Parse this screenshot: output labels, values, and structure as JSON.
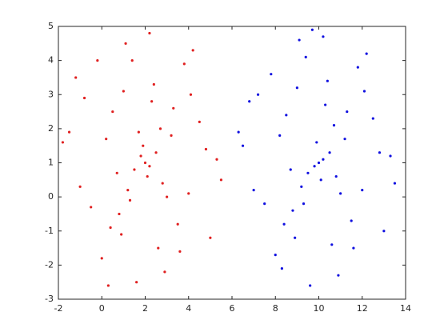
{
  "chart_data": {
    "type": "scatter",
    "xlim": [
      -2,
      14
    ],
    "ylim": [
      -3,
      5
    ],
    "xticks": [
      -2,
      0,
      2,
      4,
      6,
      8,
      10,
      12,
      14
    ],
    "yticks": [
      -3,
      -2,
      -1,
      0,
      1,
      2,
      3,
      4,
      5
    ],
    "grid": false,
    "series": [
      {
        "color": "#e02020",
        "x": [
          2.0,
          1.8,
          2.2,
          1.5,
          2.5,
          1.9,
          2.1,
          1.2,
          2.8,
          0.8,
          3.2,
          0.5,
          3.5,
          1.0,
          2.6,
          1.4,
          2.3,
          0.2,
          4.0,
          -0.5,
          4.5,
          -1.2,
          5.0,
          -1.5,
          5.3,
          0.0,
          3.8,
          1.6,
          2.9,
          -0.8,
          4.2,
          0.9,
          3.0,
          1.1,
          2.4,
          -1.8,
          5.5,
          0.3,
          4.8,
          1.3,
          2.7,
          -0.2,
          3.6,
          0.7,
          1.7,
          2.2,
          -1.0,
          4.1,
          0.4,
          3.3
        ],
        "values": [
          1.0,
          1.2,
          0.9,
          0.8,
          1.3,
          1.5,
          0.6,
          0.2,
          0.4,
          -0.5,
          1.8,
          2.5,
          -0.8,
          3.1,
          -1.5,
          4.0,
          2.8,
          1.7,
          0.1,
          -0.3,
          2.2,
          3.5,
          -1.2,
          1.9,
          1.1,
          -1.8,
          3.9,
          -2.5,
          -2.2,
          2.9,
          4.3,
          -1.1,
          0.0,
          4.5,
          3.3,
          1.6,
          0.5,
          -2.6,
          1.4,
          -0.1,
          2.0,
          4.0,
          -1.6,
          0.7,
          1.9,
          4.8,
          0.3,
          3.0,
          -0.9,
          2.6
        ]
      },
      {
        "color": "#1010e0",
        "x": [
          10.0,
          9.8,
          10.2,
          9.5,
          10.5,
          9.9,
          10.1,
          9.2,
          10.8,
          8.8,
          11.2,
          8.5,
          11.5,
          9.0,
          10.6,
          9.4,
          10.3,
          8.2,
          12.0,
          7.5,
          12.5,
          6.8,
          13.0,
          6.5,
          13.3,
          8.0,
          11.8,
          9.6,
          10.9,
          7.2,
          12.2,
          8.9,
          11.0,
          9.1,
          10.4,
          6.3,
          13.5,
          8.3,
          12.8,
          9.3,
          10.7,
          7.8,
          11.6,
          8.7,
          9.7,
          10.2,
          7.0,
          12.1,
          8.4,
          11.3
        ],
        "values": [
          1.0,
          0.9,
          1.1,
          0.7,
          1.3,
          1.6,
          0.5,
          0.3,
          0.6,
          -0.4,
          1.7,
          2.4,
          -0.7,
          3.2,
          -1.4,
          4.1,
          2.7,
          1.8,
          0.2,
          -0.2,
          2.3,
          2.8,
          -1.0,
          1.5,
          1.2,
          -1.7,
          3.8,
          -2.6,
          -2.3,
          3.0,
          4.2,
          -1.2,
          0.1,
          4.6,
          3.4,
          1.9,
          0.4,
          -2.1,
          1.3,
          -0.2,
          2.1,
          3.6,
          -1.5,
          0.8,
          4.9,
          4.7,
          0.2,
          3.1,
          -0.8,
          2.5
        ]
      }
    ]
  }
}
